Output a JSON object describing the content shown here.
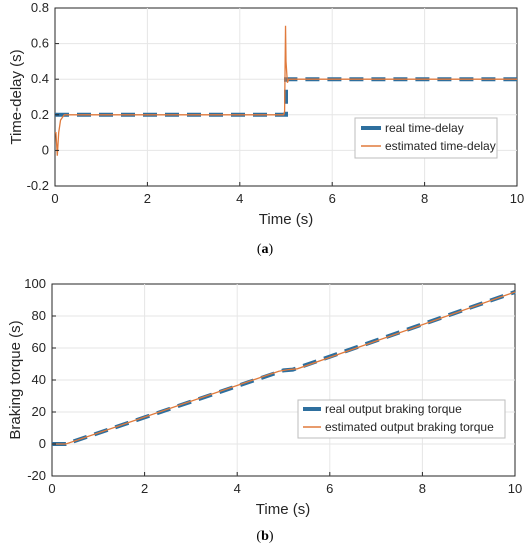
{
  "colors": {
    "real": "#2E6F9E",
    "estimated": "#E07A3C",
    "grid": "#E6E6E6",
    "axis": "#262626"
  },
  "chart_data": [
    {
      "type": "line",
      "caption": "(a)",
      "caption_letter": "a",
      "xlabel": "Time (s)",
      "ylabel": "Time-delay (s)",
      "xlim": [
        0,
        10
      ],
      "ylim": [
        -0.2,
        0.8
      ],
      "xticks": [
        0,
        2,
        4,
        6,
        8,
        10
      ],
      "yticks": [
        -0.2,
        0,
        0.2,
        0.4,
        0.6,
        0.8
      ],
      "grid": true,
      "legend_position": "right",
      "series": [
        {
          "name": "real time-delay",
          "style": "dashed-thick",
          "x": [
            0,
            5,
            5,
            10
          ],
          "y": [
            0.2,
            0.2,
            0.4,
            0.4
          ]
        },
        {
          "name": "estimated time-delay",
          "style": "solid-thin",
          "x": [
            0,
            0.02,
            0.05,
            0.08,
            0.12,
            0.2,
            4.95,
            4.97,
            4.99,
            5.0,
            5.03,
            5.06,
            10
          ],
          "y": [
            0.1,
            0.1,
            -0.03,
            0.1,
            0.17,
            0.2,
            0.2,
            0.22,
            0.7,
            0.5,
            0.38,
            0.4,
            0.4
          ]
        }
      ]
    },
    {
      "type": "line",
      "caption": "(b)",
      "caption_letter": "b",
      "xlabel": "Time (s)",
      "ylabel": "Braking torque (s)",
      "xlim": [
        0,
        10
      ],
      "ylim": [
        -20,
        100
      ],
      "xticks": [
        0,
        2,
        4,
        6,
        8,
        10
      ],
      "yticks": [
        -20,
        0,
        20,
        40,
        60,
        80,
        100
      ],
      "grid": true,
      "legend_position": "right",
      "series": [
        {
          "name": "real output braking torque",
          "style": "dashed-thick",
          "x": [
            0,
            0.3,
            5,
            5.2,
            10
          ],
          "y": [
            0,
            0,
            46,
            46.5,
            95
          ]
        },
        {
          "name": "estimated output braking torque",
          "style": "solid-thin",
          "x": [
            0,
            0.3,
            4.9,
            5.1,
            5.3,
            10
          ],
          "y": [
            0,
            0,
            45.5,
            46.5,
            47,
            95
          ]
        }
      ]
    }
  ]
}
